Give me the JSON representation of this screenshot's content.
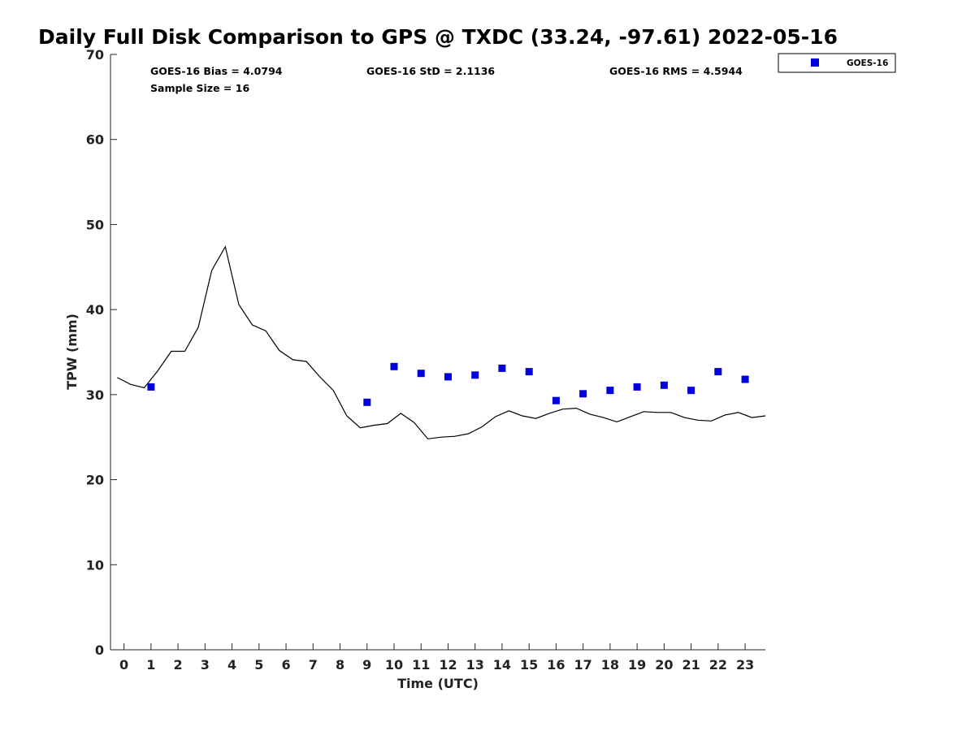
{
  "chart_data": {
    "type": "scatter",
    "title": "Daily Full Disk Comparison to GPS @ TXDC (33.24, -97.61) 2022-05-16",
    "xlabel": "Time (UTC)",
    "ylabel": "TPW (mm)",
    "xlim": [
      -0.5,
      23.75
    ],
    "ylim": [
      0,
      70
    ],
    "xticks": [
      "0",
      "1",
      "2",
      "3",
      "4",
      "5",
      "6",
      "7",
      "8",
      "9",
      "10",
      "11",
      "12",
      "13",
      "14",
      "15",
      "16",
      "17",
      "18",
      "19",
      "20",
      "21",
      "22",
      "23"
    ],
    "yticks": [
      "0",
      "10",
      "20",
      "30",
      "40",
      "50",
      "60",
      "70"
    ],
    "grid": false,
    "legend_position": "outside-top-right",
    "stats": {
      "bias": "GOES-16 Bias = 4.0794",
      "std": "GOES-16 StD = 2.1136",
      "rms": "GOES-16 RMS = 4.5944",
      "sample": "Sample Size = 16"
    },
    "series": [
      {
        "name": "GOES-16",
        "kind": "scatter",
        "marker": "square",
        "color": "#0000dd",
        "points": [
          [
            1,
            30.9
          ],
          [
            9,
            29.1
          ],
          [
            10,
            33.3
          ],
          [
            11,
            32.5
          ],
          [
            12,
            32.1
          ],
          [
            13,
            32.3
          ],
          [
            14,
            33.1
          ],
          [
            15,
            32.7
          ],
          [
            16,
            29.3
          ],
          [
            17,
            30.1
          ],
          [
            18,
            30.5
          ],
          [
            19,
            30.9
          ],
          [
            20,
            31.1
          ],
          [
            21,
            30.5
          ],
          [
            22,
            32.7
          ],
          [
            23,
            31.8
          ]
        ]
      },
      {
        "kind": "line",
        "color": "#000000",
        "points": [
          [
            -0.25,
            32.0
          ],
          [
            0.25,
            31.2
          ],
          [
            0.75,
            30.8
          ],
          [
            1.25,
            32.8
          ],
          [
            1.75,
            35.1
          ],
          [
            2.25,
            35.1
          ],
          [
            2.75,
            37.9
          ],
          [
            3.25,
            44.6
          ],
          [
            3.75,
            47.4
          ],
          [
            4.25,
            40.6
          ],
          [
            4.75,
            38.2
          ],
          [
            5.25,
            37.5
          ],
          [
            5.75,
            35.2
          ],
          [
            6.25,
            34.1
          ],
          [
            6.75,
            33.9
          ],
          [
            7.25,
            32.1
          ],
          [
            7.75,
            30.5
          ],
          [
            8.25,
            27.5
          ],
          [
            8.75,
            26.1
          ],
          [
            9.25,
            26.4
          ],
          [
            9.75,
            26.6
          ],
          [
            10.25,
            27.8
          ],
          [
            10.75,
            26.7
          ],
          [
            11.25,
            24.8
          ],
          [
            11.75,
            25.0
          ],
          [
            12.25,
            25.1
          ],
          [
            12.75,
            25.4
          ],
          [
            13.25,
            26.2
          ],
          [
            13.75,
            27.4
          ],
          [
            14.25,
            28.1
          ],
          [
            14.75,
            27.5
          ],
          [
            15.25,
            27.2
          ],
          [
            15.75,
            27.8
          ],
          [
            16.25,
            28.3
          ],
          [
            16.75,
            28.4
          ],
          [
            17.25,
            27.7
          ],
          [
            17.75,
            27.3
          ],
          [
            18.25,
            26.8
          ],
          [
            18.75,
            27.4
          ],
          [
            19.25,
            28.0
          ],
          [
            19.75,
            27.9
          ],
          [
            20.25,
            27.9
          ],
          [
            20.75,
            27.3
          ],
          [
            21.25,
            27.0
          ],
          [
            21.75,
            26.9
          ],
          [
            22.25,
            27.6
          ],
          [
            22.75,
            27.9
          ],
          [
            23.25,
            27.3
          ],
          [
            23.75,
            27.5
          ]
        ]
      }
    ]
  }
}
